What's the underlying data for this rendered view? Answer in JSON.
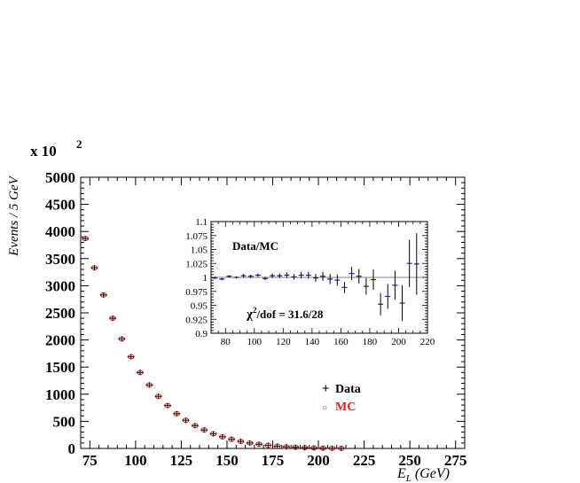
{
  "chart_data": [
    {
      "type": "scatter",
      "multiplier_label": "x 10",
      "multiplier_exponent": "2",
      "ylabel": "Events / 5 GeV",
      "xlabel_symbol": "E",
      "xlabel_subscript": "L",
      "xlabel_unit": "(GeV)",
      "xlim": [
        70,
        280
      ],
      "ylim": [
        0,
        5000
      ],
      "x_ticks": [
        75,
        100,
        125,
        150,
        175,
        200,
        225,
        250,
        275
      ],
      "y_ticks": [
        0,
        500,
        1000,
        1500,
        2000,
        2500,
        3000,
        3500,
        4000,
        4500,
        5000
      ],
      "legend": [
        {
          "marker": "+",
          "label": "Data",
          "color": "#000000"
        },
        {
          "marker": "○",
          "label": "MC",
          "color": "#e0201b"
        }
      ],
      "series": [
        {
          "name": "Data",
          "color": "#000000",
          "x": [
            72.5,
            77.5,
            82.5,
            87.5,
            92.5,
            97.5,
            102.5,
            107.5,
            112.5,
            117.5,
            122.5,
            127.5,
            132.5,
            137.5,
            142.5,
            147.5,
            152.5,
            157.5,
            162.5,
            167.5,
            172.5,
            177.5,
            182.5,
            187.5,
            192.5,
            197.5,
            202.5,
            207.5,
            212.5
          ],
          "y": [
            3870,
            3330,
            2830,
            2400,
            2020,
            1690,
            1400,
            1170,
            960,
            790,
            640,
            520,
            420,
            340,
            270,
            215,
            170,
            130,
            100,
            78,
            58,
            42,
            30,
            22,
            15,
            10,
            6,
            4,
            2
          ]
        },
        {
          "name": "MC",
          "color": "#e0201b",
          "x": [
            72.5,
            77.5,
            82.5,
            87.5,
            92.5,
            97.5,
            102.5,
            107.5,
            112.5,
            117.5,
            122.5,
            127.5,
            132.5,
            137.5,
            142.5,
            147.5,
            152.5,
            157.5,
            162.5,
            167.5,
            172.5,
            177.5,
            182.5,
            187.5,
            192.5,
            197.5,
            202.5,
            207.5,
            212.5
          ],
          "y": [
            3870,
            3330,
            2830,
            2400,
            2020,
            1690,
            1400,
            1170,
            960,
            790,
            640,
            520,
            420,
            340,
            270,
            215,
            170,
            130,
            100,
            78,
            58,
            42,
            30,
            22,
            15,
            10,
            6,
            4,
            2
          ]
        }
      ]
    },
    {
      "type": "scatter",
      "title": "Data/MC",
      "annotation_prefix": "χ",
      "annotation_exponent": "2",
      "annotation_rest": "/dof = 31.6/28",
      "xlim": [
        70,
        220
      ],
      "ylim": [
        0.9,
        1.1
      ],
      "x_ticks": [
        80,
        100,
        120,
        140,
        160,
        180,
        200,
        220
      ],
      "y_ticks": [
        0.9,
        0.925,
        0.95,
        0.975,
        1,
        1.025,
        1.05,
        1.075,
        1.1
      ],
      "y_tick_labels": [
        "0.9",
        "0.925",
        "0.95",
        "0.975",
        "1",
        "1.025",
        "1.05",
        "1.075",
        "1.1"
      ],
      "series": [
        {
          "name": "Data/MC",
          "color": "#1a1aa6",
          "x": [
            72.5,
            77.5,
            82.5,
            87.5,
            92.5,
            97.5,
            102.5,
            107.5,
            112.5,
            117.5,
            122.5,
            127.5,
            132.5,
            137.5,
            142.5,
            147.5,
            152.5,
            157.5,
            162.5,
            167.5,
            172.5,
            177.5,
            182.5,
            187.5,
            192.5,
            197.5,
            202.5,
            207.5,
            212.5
          ],
          "y": [
            0.999,
            0.997,
            1.002,
            1.0,
            1.003,
            1.002,
            1.004,
            0.998,
            1.003,
            1.003,
            1.004,
            1.001,
            1.004,
            1.004,
            0.999,
            1.002,
            0.997,
            0.995,
            0.982,
            1.007,
            1.002,
            0.984,
            0.996,
            0.952,
            0.966,
            0.986,
            0.954,
            1.025,
            1.024
          ],
          "y_error": [
            0.002,
            0.002,
            0.002,
            0.002,
            0.003,
            0.003,
            0.003,
            0.003,
            0.004,
            0.004,
            0.005,
            0.005,
            0.006,
            0.006,
            0.007,
            0.008,
            0.009,
            0.01,
            0.01,
            0.012,
            0.013,
            0.015,
            0.018,
            0.02,
            0.022,
            0.026,
            0.032,
            0.042,
            0.055
          ]
        }
      ]
    }
  ]
}
